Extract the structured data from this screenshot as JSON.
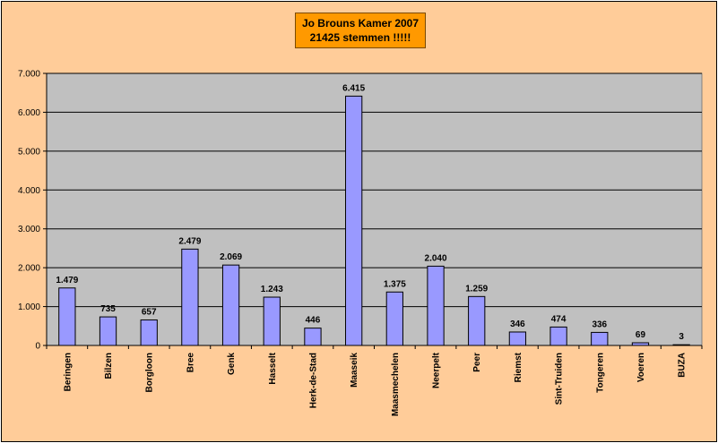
{
  "chart_data": {
    "type": "bar",
    "title_lines": [
      "Jo Brouns Kamer 2007",
      "21425 stemmen !!!!!"
    ],
    "categories": [
      "Beringen",
      "Bilzen",
      "Borgloon",
      "Bree",
      "Genk",
      "Hasselt",
      "Herk-de-Stad",
      "Maaseik",
      "Maasmechelen",
      "Neerpelt",
      "Peer",
      "Riemst",
      "Sint-Truiden",
      "Tongeren",
      "Voeren",
      "BUZA"
    ],
    "values": [
      1479,
      735,
      657,
      2479,
      2069,
      1243,
      446,
      6415,
      1375,
      2040,
      1259,
      346,
      474,
      336,
      69,
      3
    ],
    "data_labels": [
      "1.479",
      "735",
      "657",
      "2.479",
      "2.069",
      "1.243",
      "446",
      "6.415",
      "1.375",
      "2.040",
      "1.259",
      "346",
      "474",
      "336",
      "69",
      "3"
    ],
    "ylim": [
      0,
      7000
    ],
    "yticks": [
      0,
      1000,
      2000,
      3000,
      4000,
      5000,
      6000,
      7000
    ],
    "ytick_labels": [
      "0",
      "1.000",
      "2.000",
      "3.000",
      "4.000",
      "5.000",
      "6.000",
      "7.000"
    ],
    "grid": true,
    "legend": "none",
    "colors": {
      "bar_fill": "#9999ff",
      "bar_stroke": "#000000",
      "plot_background": "#c0c0c0",
      "chart_background": "#ffcc99",
      "title_background": "#ff9900"
    }
  }
}
